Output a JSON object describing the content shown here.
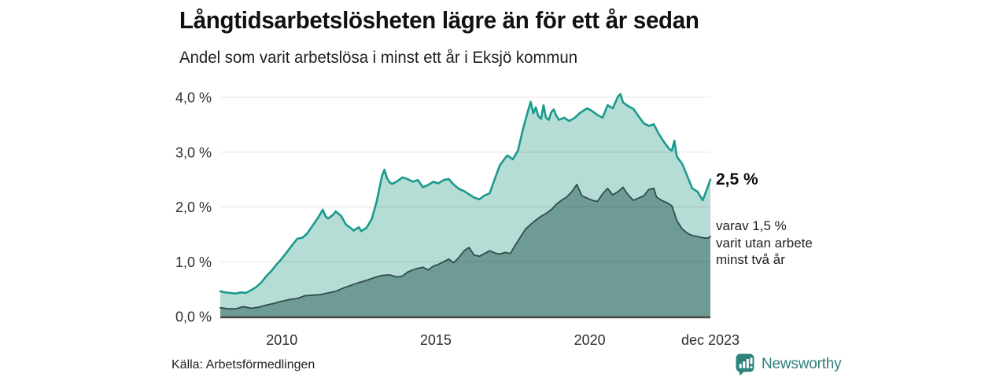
{
  "annotation": {
    "value_label": "2,5 %",
    "detail": "varav 1,5 %\nvarit utan arbete\nminst två år"
  },
  "brand": {
    "name": "Newsworthy"
  },
  "colors": {
    "total_line": "#1a9a8c",
    "total_fill": "#b5dcd5",
    "sub_line": "#2f4d49",
    "sub_fill": "#6f9b96",
    "grid": "rgba(0,0,0,0.10)",
    "axis": "#474747",
    "brand": "#2e837c",
    "title_text": "#111111",
    "body_text": "#1f1f1f"
  },
  "chart_data": {
    "type": "area",
    "title": "Långtidsarbetslösheten lägre än för ett år sedan",
    "subtitle": "Andel som varit arbetslösa i minst ett år i Eksjö kommun",
    "source": "Källa: Arbetsförmedlingen",
    "x_domain": [
      2008,
      2023.92
    ],
    "ylim": [
      0,
      4
    ],
    "grid": true,
    "yticks": [
      [
        0,
        "0,0 %"
      ],
      [
        1,
        "1,0 %"
      ],
      [
        2,
        "2,0 %"
      ],
      [
        3,
        "3,0 %"
      ],
      [
        4,
        "4,0 %"
      ]
    ],
    "xticks": [
      [
        2010,
        "2010"
      ],
      [
        2015,
        "2015"
      ],
      [
        2020,
        "2020"
      ],
      [
        2023.92,
        "dec 2023"
      ]
    ],
    "latest": {
      "total": 2.5,
      "sub": 1.5,
      "period": "dec 2023"
    },
    "series": [
      {
        "id": "minst-ett-ar",
        "name": "Arbetslösa minst ett år",
        "points": [
          [
            2008.0,
            0.46
          ],
          [
            2008.17,
            0.44
          ],
          [
            2008.33,
            0.43
          ],
          [
            2008.5,
            0.42
          ],
          [
            2008.67,
            0.44
          ],
          [
            2008.83,
            0.43
          ],
          [
            2009.0,
            0.48
          ],
          [
            2009.17,
            0.54
          ],
          [
            2009.33,
            0.62
          ],
          [
            2009.5,
            0.74
          ],
          [
            2009.67,
            0.84
          ],
          [
            2009.83,
            0.95
          ],
          [
            2010.0,
            1.06
          ],
          [
            2010.17,
            1.18
          ],
          [
            2010.33,
            1.3
          ],
          [
            2010.5,
            1.42
          ],
          [
            2010.67,
            1.44
          ],
          [
            2010.83,
            1.52
          ],
          [
            2011.0,
            1.66
          ],
          [
            2011.17,
            1.8
          ],
          [
            2011.33,
            1.95
          ],
          [
            2011.42,
            1.83
          ],
          [
            2011.5,
            1.79
          ],
          [
            2011.67,
            1.86
          ],
          [
            2011.75,
            1.92
          ],
          [
            2011.92,
            1.84
          ],
          [
            2012.08,
            1.68
          ],
          [
            2012.25,
            1.61
          ],
          [
            2012.33,
            1.57
          ],
          [
            2012.5,
            1.63
          ],
          [
            2012.58,
            1.56
          ],
          [
            2012.75,
            1.62
          ],
          [
            2012.92,
            1.78
          ],
          [
            2013.08,
            2.1
          ],
          [
            2013.25,
            2.56
          ],
          [
            2013.33,
            2.68
          ],
          [
            2013.42,
            2.52
          ],
          [
            2013.5,
            2.45
          ],
          [
            2013.58,
            2.42
          ],
          [
            2013.75,
            2.47
          ],
          [
            2013.92,
            2.54
          ],
          [
            2014.08,
            2.51
          ],
          [
            2014.25,
            2.46
          ],
          [
            2014.42,
            2.49
          ],
          [
            2014.58,
            2.36
          ],
          [
            2014.75,
            2.4
          ],
          [
            2014.92,
            2.46
          ],
          [
            2015.08,
            2.43
          ],
          [
            2015.25,
            2.49
          ],
          [
            2015.42,
            2.51
          ],
          [
            2015.58,
            2.41
          ],
          [
            2015.75,
            2.33
          ],
          [
            2015.92,
            2.29
          ],
          [
            2016.08,
            2.23
          ],
          [
            2016.25,
            2.17
          ],
          [
            2016.42,
            2.14
          ],
          [
            2016.58,
            2.21
          ],
          [
            2016.75,
            2.25
          ],
          [
            2016.92,
            2.52
          ],
          [
            2017.08,
            2.76
          ],
          [
            2017.25,
            2.89
          ],
          [
            2017.33,
            2.94
          ],
          [
            2017.5,
            2.87
          ],
          [
            2017.67,
            3.03
          ],
          [
            2017.83,
            3.42
          ],
          [
            2018.0,
            3.76
          ],
          [
            2018.08,
            3.92
          ],
          [
            2018.17,
            3.71
          ],
          [
            2018.25,
            3.82
          ],
          [
            2018.33,
            3.66
          ],
          [
            2018.42,
            3.61
          ],
          [
            2018.5,
            3.86
          ],
          [
            2018.58,
            3.63
          ],
          [
            2018.67,
            3.59
          ],
          [
            2018.75,
            3.73
          ],
          [
            2018.83,
            3.78
          ],
          [
            2018.92,
            3.66
          ],
          [
            2019.0,
            3.59
          ],
          [
            2019.17,
            3.63
          ],
          [
            2019.33,
            3.57
          ],
          [
            2019.5,
            3.62
          ],
          [
            2019.67,
            3.71
          ],
          [
            2019.83,
            3.77
          ],
          [
            2019.92,
            3.8
          ],
          [
            2020.08,
            3.75
          ],
          [
            2020.25,
            3.68
          ],
          [
            2020.42,
            3.63
          ],
          [
            2020.58,
            3.86
          ],
          [
            2020.75,
            3.8
          ],
          [
            2020.92,
            4.02
          ],
          [
            2021.0,
            4.06
          ],
          [
            2021.08,
            3.91
          ],
          [
            2021.25,
            3.84
          ],
          [
            2021.42,
            3.79
          ],
          [
            2021.58,
            3.66
          ],
          [
            2021.75,
            3.53
          ],
          [
            2021.92,
            3.48
          ],
          [
            2022.08,
            3.51
          ],
          [
            2022.25,
            3.33
          ],
          [
            2022.42,
            3.18
          ],
          [
            2022.58,
            3.06
          ],
          [
            2022.67,
            3.03
          ],
          [
            2022.75,
            3.21
          ],
          [
            2022.83,
            2.92
          ],
          [
            2023.0,
            2.79
          ],
          [
            2023.17,
            2.56
          ],
          [
            2023.33,
            2.34
          ],
          [
            2023.5,
            2.28
          ],
          [
            2023.67,
            2.12
          ],
          [
            2023.83,
            2.36
          ],
          [
            2023.92,
            2.5
          ]
        ]
      },
      {
        "id": "minst-tva-ar",
        "name": "Arbetslösa minst två år",
        "points": [
          [
            2008.0,
            0.16
          ],
          [
            2008.25,
            0.14
          ],
          [
            2008.5,
            0.14
          ],
          [
            2008.75,
            0.18
          ],
          [
            2009.0,
            0.15
          ],
          [
            2009.25,
            0.17
          ],
          [
            2009.5,
            0.21
          ],
          [
            2009.75,
            0.24
          ],
          [
            2010.0,
            0.28
          ],
          [
            2010.25,
            0.31
          ],
          [
            2010.5,
            0.33
          ],
          [
            2010.75,
            0.38
          ],
          [
            2011.0,
            0.39
          ],
          [
            2011.25,
            0.4
          ],
          [
            2011.5,
            0.43
          ],
          [
            2011.75,
            0.46
          ],
          [
            2012.0,
            0.52
          ],
          [
            2012.25,
            0.57
          ],
          [
            2012.5,
            0.62
          ],
          [
            2012.75,
            0.66
          ],
          [
            2013.0,
            0.71
          ],
          [
            2013.25,
            0.75
          ],
          [
            2013.5,
            0.76
          ],
          [
            2013.75,
            0.72
          ],
          [
            2013.92,
            0.74
          ],
          [
            2014.08,
            0.81
          ],
          [
            2014.25,
            0.85
          ],
          [
            2014.42,
            0.88
          ],
          [
            2014.58,
            0.9
          ],
          [
            2014.75,
            0.85
          ],
          [
            2014.92,
            0.92
          ],
          [
            2015.08,
            0.95
          ],
          [
            2015.25,
            1.0
          ],
          [
            2015.42,
            1.05
          ],
          [
            2015.58,
            0.98
          ],
          [
            2015.75,
            1.08
          ],
          [
            2015.92,
            1.2
          ],
          [
            2016.08,
            1.26
          ],
          [
            2016.25,
            1.12
          ],
          [
            2016.42,
            1.1
          ],
          [
            2016.58,
            1.15
          ],
          [
            2016.75,
            1.2
          ],
          [
            2016.92,
            1.16
          ],
          [
            2017.08,
            1.14
          ],
          [
            2017.25,
            1.17
          ],
          [
            2017.42,
            1.15
          ],
          [
            2017.58,
            1.3
          ],
          [
            2017.75,
            1.45
          ],
          [
            2017.92,
            1.6
          ],
          [
            2018.08,
            1.68
          ],
          [
            2018.25,
            1.76
          ],
          [
            2018.42,
            1.83
          ],
          [
            2018.58,
            1.88
          ],
          [
            2018.75,
            1.95
          ],
          [
            2018.92,
            2.05
          ],
          [
            2019.08,
            2.12
          ],
          [
            2019.25,
            2.18
          ],
          [
            2019.42,
            2.28
          ],
          [
            2019.58,
            2.41
          ],
          [
            2019.75,
            2.2
          ],
          [
            2019.92,
            2.16
          ],
          [
            2020.08,
            2.12
          ],
          [
            2020.25,
            2.1
          ],
          [
            2020.42,
            2.24
          ],
          [
            2020.58,
            2.34
          ],
          [
            2020.75,
            2.22
          ],
          [
            2020.92,
            2.28
          ],
          [
            2021.08,
            2.36
          ],
          [
            2021.25,
            2.22
          ],
          [
            2021.42,
            2.12
          ],
          [
            2021.58,
            2.16
          ],
          [
            2021.75,
            2.2
          ],
          [
            2021.92,
            2.32
          ],
          [
            2022.08,
            2.34
          ],
          [
            2022.17,
            2.18
          ],
          [
            2022.33,
            2.12
          ],
          [
            2022.5,
            2.08
          ],
          [
            2022.67,
            2.02
          ],
          [
            2022.83,
            1.75
          ],
          [
            2023.0,
            1.6
          ],
          [
            2023.17,
            1.52
          ],
          [
            2023.33,
            1.48
          ],
          [
            2023.5,
            1.46
          ],
          [
            2023.67,
            1.44
          ],
          [
            2023.83,
            1.43
          ],
          [
            2023.92,
            1.46
          ]
        ]
      }
    ]
  }
}
